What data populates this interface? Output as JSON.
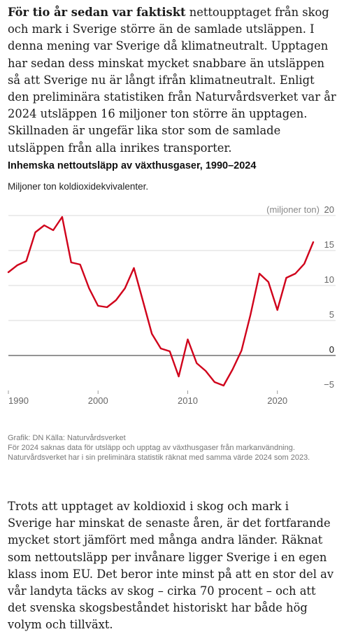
{
  "article": {
    "p1_lead": "För tio år sedan var faktiskt",
    "p1_rest": " nettoupptaget från skog och mark i Sverige större än de samlade utsläppen. I denna mening var Sverige då klimatneutralt. Upptagen har sedan dess minskat mycket snabbare än utsläppen så att Sverige nu är långt ifrån klimatneutralt. Enligt den preliminära statistiken från Naturvårdsverket var år 2024 utsläppen 16 miljoner ton större än upptagen. Skillnaden är ungefär lika stor som de samlade utsläppen från alla inrikes transporter.",
    "p2": "Trots att upptaget av koldioxid i skog och mark i Sverige har minskat de senaste åren, är det fortfarande mycket stort jämfört med många andra länder. Räknat som nettoutsläpp per invånare ligger Sverige i en egen klass inom EU. Det beror inte minst på att en stor del av vår landyta täcks av skog – cirka 70 procent – och att det svenska skogsbeståndet historiskt har både hög volym och tillväxt."
  },
  "chart_data": {
    "type": "line",
    "title": "Inhemska nettoutsläpp av växthusgaser, 1990–2024",
    "subtitle": "Miljoner ton koldioxidekvivalenter.",
    "unit_label": "(miljoner ton)",
    "xlabel": "",
    "ylabel": "",
    "xlim": [
      1990,
      2024
    ],
    "ylim": [
      -5,
      20
    ],
    "x_ticks": [
      "1990",
      "2000",
      "2010",
      "2020"
    ],
    "y_ticks": [
      "20",
      "15",
      "10",
      "5",
      "0",
      "−5"
    ],
    "grid": true,
    "legend": "none",
    "series": [
      {
        "color": "#d0021b",
        "x": [
          1990,
          1991,
          1992,
          1993,
          1994,
          1995,
          1996,
          1997,
          1998,
          1999,
          2000,
          2001,
          2002,
          2003,
          2004,
          2005,
          2006,
          2007,
          2008,
          2009,
          2010,
          2011,
          2012,
          2013,
          2014,
          2015,
          2016,
          2017,
          2018,
          2019,
          2020,
          2021,
          2022,
          2023,
          2024
        ],
        "values": [
          11.9,
          12.9,
          13.5,
          17.6,
          18.6,
          17.9,
          19.8,
          13.3,
          13.0,
          9.6,
          7.1,
          6.9,
          7.9,
          9.6,
          12.5,
          7.8,
          3.1,
          1.0,
          0.6,
          -3.0,
          2.3,
          -1.1,
          -2.2,
          -3.8,
          -4.3,
          -2.0,
          0.7,
          5.8,
          11.7,
          10.5,
          6.5,
          11.1,
          11.7,
          13.1,
          16.2
        ]
      }
    ]
  },
  "footer": {
    "source": "Grafik: DN Källa: Naturvårdsverket",
    "note": "För 2024 saknas data för utsläpp och upptag av växthusgaser från markanvändning. Naturvårdsverket har i sin preliminära statistik räknat med samma värde 2024 som 2023."
  }
}
